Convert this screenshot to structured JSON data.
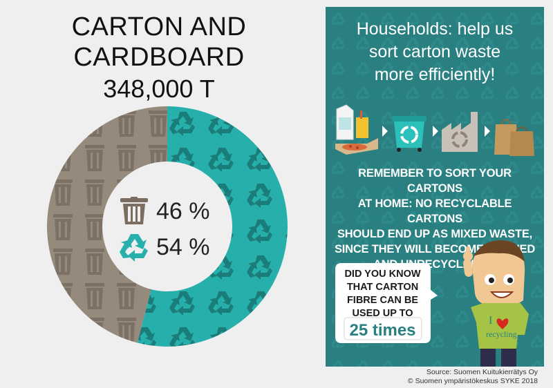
{
  "title": {
    "line1": "CARTON AND",
    "line2": "CARDBOARD",
    "total": "348,000 T"
  },
  "chart_data": {
    "type": "pie",
    "categories": [
      "Mixed waste",
      "Recycled"
    ],
    "values": [
      46,
      54
    ],
    "labels": [
      "46 %",
      "54 %"
    ],
    "colors": [
      "#968a7d",
      "#27b0ab"
    ],
    "icons": [
      "trash-bin-icon",
      "recycle-icon"
    ]
  },
  "panel": {
    "heading": [
      "Households: help us",
      "sort carton waste",
      "more efficiently!"
    ],
    "body": [
      "REMEMBER TO SORT YOUR CARTONS",
      "AT HOME: NO RECYCLABLE CARTONS",
      "SHOULD END UP AS MIXED WASTE,",
      "SINCE THEY WILL BECOME STAINED",
      "AND UNRECYCLABLE."
    ],
    "bubble": [
      "DID YOU KNOW",
      "THAT CARTON",
      "FIBRE CAN BE",
      "USED UP TO"
    ],
    "bubble_highlight": "25 times",
    "shirt_text": {
      "letter": "I",
      "word": "recycling"
    },
    "background": "#2a7f80"
  },
  "source": {
    "line1": "Source: Suomen Kuitukierrätys Oy",
    "line2": "© Suomen ympäristökeskus SYKE 2018"
  }
}
